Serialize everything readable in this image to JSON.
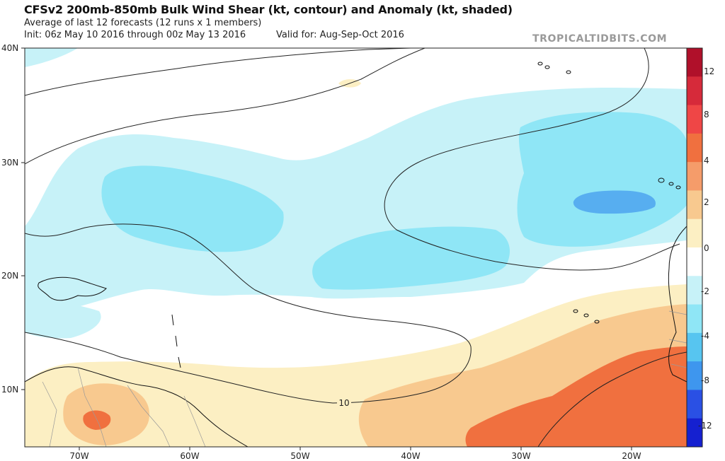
{
  "header": {
    "title": "CFSv2 200mb-850mb Bulk Wind Shear (kt, contour) and Anomaly (kt, shaded)",
    "subtitle": "Average of last 12 forecasts (12 runs x 1 members)",
    "init": "Init: 06z May 10 2016 through 00z May 13 2016",
    "valid": "Valid for: Aug-Sep-Oct 2016",
    "brand": "TROPICALTIDBITS.COM"
  },
  "map": {
    "lat_labels": [
      "40N",
      "30N",
      "20N",
      "10N"
    ],
    "lon_labels": [
      "70W",
      "60W",
      "50W",
      "40W",
      "30W",
      "20W"
    ],
    "contour_labels": [
      "10"
    ]
  },
  "colorbar": {
    "labels": [
      "12",
      "8",
      "4",
      "2",
      "0",
      "-2",
      "-4",
      "-8",
      "-12"
    ],
    "colors": [
      "#b0102a",
      "#d62a3a",
      "#ef4646",
      "#f0703f",
      "#f59c6a",
      "#f8c98f",
      "#fcefc3",
      "#ffffff",
      "#c7f2f8",
      "#8fe6f6",
      "#57c5f0",
      "#3e96ee",
      "#2a50e4",
      "#1520d0"
    ]
  },
  "colors": {
    "anomaly_pos_light": "#fcefc3",
    "anomaly_pos_mid": "#f8c98f",
    "anomaly_pos_strong": "#f0703f",
    "anomaly_neg_light": "#c7f2f8",
    "anomaly_neg_mid": "#8fe6f6",
    "anomaly_neg_strong": "#57aef0"
  }
}
